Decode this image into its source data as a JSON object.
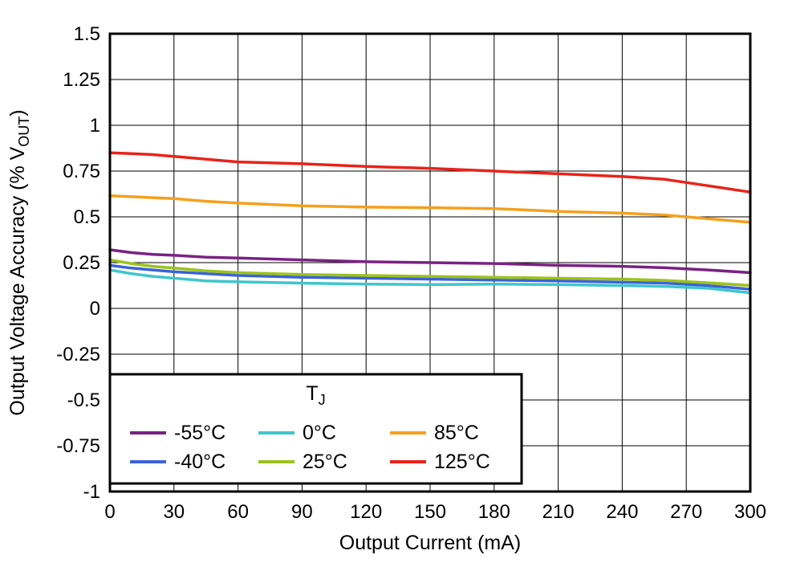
{
  "chart_data": {
    "type": "line",
    "title": "",
    "xlabel": "Output Current (mA)",
    "ylabel": {
      "pre": "Output Voltage Accuracy (% V",
      "sub": "OUT",
      "post": ")"
    },
    "xlim": [
      0,
      300
    ],
    "ylim": [
      -1,
      1.5
    ],
    "xticks": [
      0,
      30,
      60,
      90,
      120,
      150,
      180,
      210,
      240,
      270,
      300
    ],
    "yticks": [
      -1,
      -0.75,
      -0.5,
      -0.25,
      0,
      0.25,
      0.5,
      0.75,
      1,
      1.25,
      1.5
    ],
    "yticklabels": [
      "-1",
      "-0.75",
      "-0.5",
      "-0.25",
      "0",
      "0.25",
      "0.5",
      "0.75",
      "1",
      "1.25",
      "1.5"
    ],
    "grid": true,
    "x": [
      0,
      10,
      20,
      30,
      45,
      60,
      90,
      120,
      150,
      180,
      210,
      240,
      260,
      280,
      300
    ],
    "series": [
      {
        "name": "-55°C",
        "color": "#792283",
        "values": [
          0.32,
          0.305,
          0.295,
          0.29,
          0.28,
          0.275,
          0.265,
          0.255,
          0.25,
          0.245,
          0.235,
          0.23,
          0.222,
          0.21,
          0.195
        ]
      },
      {
        "name": "-40°C",
        "color": "#3A62D9",
        "values": [
          0.235,
          0.22,
          0.21,
          0.2,
          0.19,
          0.18,
          0.17,
          0.165,
          0.16,
          0.155,
          0.15,
          0.143,
          0.138,
          0.125,
          0.105
        ]
      },
      {
        "name": "0°C",
        "color": "#3EC6CC",
        "values": [
          0.21,
          0.19,
          0.175,
          0.165,
          0.15,
          0.145,
          0.138,
          0.133,
          0.13,
          0.133,
          0.13,
          0.125,
          0.12,
          0.11,
          0.085
        ]
      },
      {
        "name": "25°C",
        "color": "#9CC21C",
        "values": [
          0.265,
          0.245,
          0.23,
          0.22,
          0.205,
          0.195,
          0.185,
          0.18,
          0.175,
          0.17,
          0.165,
          0.16,
          0.153,
          0.14,
          0.125
        ]
      },
      {
        "name": "85°C",
        "color": "#F4A01D",
        "values": [
          0.615,
          0.61,
          0.605,
          0.6,
          0.585,
          0.575,
          0.56,
          0.553,
          0.55,
          0.545,
          0.53,
          0.52,
          0.51,
          0.49,
          0.47
        ]
      },
      {
        "name": "125°C",
        "color": "#E8231A",
        "values": [
          0.85,
          0.845,
          0.84,
          0.83,
          0.815,
          0.8,
          0.79,
          0.775,
          0.765,
          0.75,
          0.735,
          0.72,
          0.705,
          0.67,
          0.635
        ]
      }
    ],
    "legend": {
      "position": "bottom-left",
      "title_pre": "T",
      "title_sub": "J",
      "entries": [
        {
          "label": "-55°C",
          "color": "#792283",
          "col": 0,
          "row": 0
        },
        {
          "label": "-40°C",
          "color": "#3A62D9",
          "col": 0,
          "row": 1
        },
        {
          "label": "0°C",
          "color": "#3EC6CC",
          "col": 1,
          "row": 0
        },
        {
          "label": "25°C",
          "color": "#9CC21C",
          "col": 1,
          "row": 1
        },
        {
          "label": "85°C",
          "color": "#F4A01D",
          "col": 2,
          "row": 0
        },
        {
          "label": "125°C",
          "color": "#E8231A",
          "col": 2,
          "row": 1
        }
      ]
    },
    "axis_color": "#000000",
    "grid_color": "#000000",
    "background_color": "#ffffff"
  }
}
